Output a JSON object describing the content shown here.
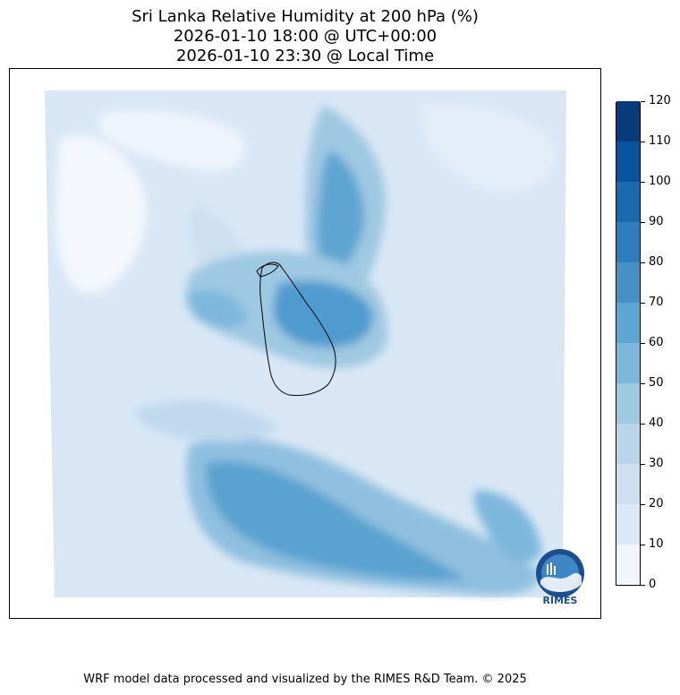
{
  "title": {
    "line1": "Sri Lanka Relative Humidity at 200 hPa (%)",
    "line2": "2026-01-10 18:00 @ UTC+00:00",
    "line3": "2026-01-10 23:30 @ Local Time"
  },
  "colorbar": {
    "ticks": [
      "0",
      "10",
      "20",
      "30",
      "40",
      "50",
      "60",
      "70",
      "80",
      "90",
      "100",
      "110",
      "120"
    ],
    "colors": [
      "#f1f6fc",
      "#dbe9f6",
      "#cddff1",
      "#b9d5ea",
      "#9fc9e1",
      "#7db7db",
      "#5ea5d1",
      "#4591c6",
      "#2e7dbc",
      "#1b6aaf",
      "#0a539e",
      "#083b7a"
    ]
  },
  "logo": {
    "text": "RIMES"
  },
  "footer": "WRF model data processed and visualized by the RIMES R&D Team. © 2025"
}
